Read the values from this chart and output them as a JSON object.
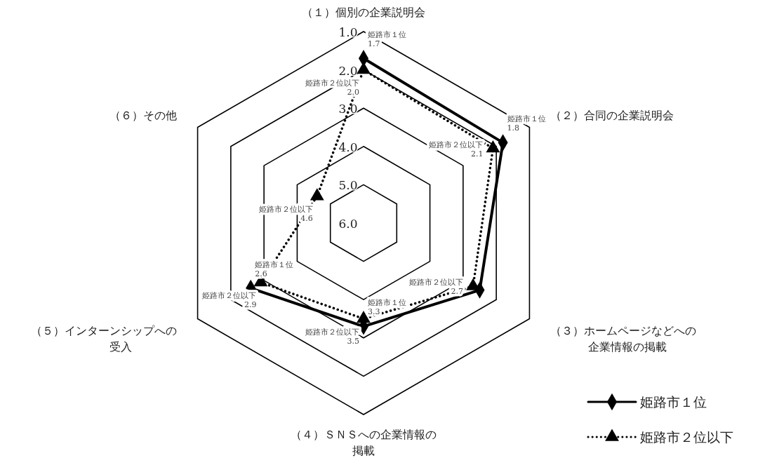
{
  "chart_data": {
    "type": "radar",
    "categories": [
      "（１）個別の企業説明会",
      "（２）合同の企業説明会",
      "（３）ホームページなどへの企業情報の掲載",
      "（４）ＳＮＳへの企業情報の掲載",
      "（５）インターンシップへの受入",
      "（６）その他"
    ],
    "ylim": [
      6,
      1
    ],
    "yticks": [
      {
        "value": 1,
        "label": "1.0"
      },
      {
        "value": 2,
        "label": "2.0"
      },
      {
        "value": 3,
        "label": "3.0"
      },
      {
        "value": 4,
        "label": "4.0"
      },
      {
        "value": 5,
        "label": "5.0"
      },
      {
        "value": 6,
        "label": "6.0"
      }
    ],
    "series": [
      {
        "name": "姫路市１位",
        "color": "#000000",
        "marker": "diamond",
        "line_style": "solid",
        "values": [
          1.7,
          1.8,
          2.5,
          3.3,
          2.6,
          null
        ],
        "value_labels": [
          "1.7",
          "1.8",
          null,
          "3.3",
          "2.6",
          null
        ]
      },
      {
        "name": "姫路市２位以下",
        "color": "#000000",
        "marker": "triangle",
        "line_style": "dotted",
        "values": [
          2.0,
          2.1,
          2.7,
          3.5,
          2.9,
          4.6
        ],
        "value_labels": [
          "2.0",
          "2.1",
          "2.7",
          "3.5",
          "2.9",
          "4.6"
        ]
      }
    ],
    "legend": "bottom right"
  }
}
